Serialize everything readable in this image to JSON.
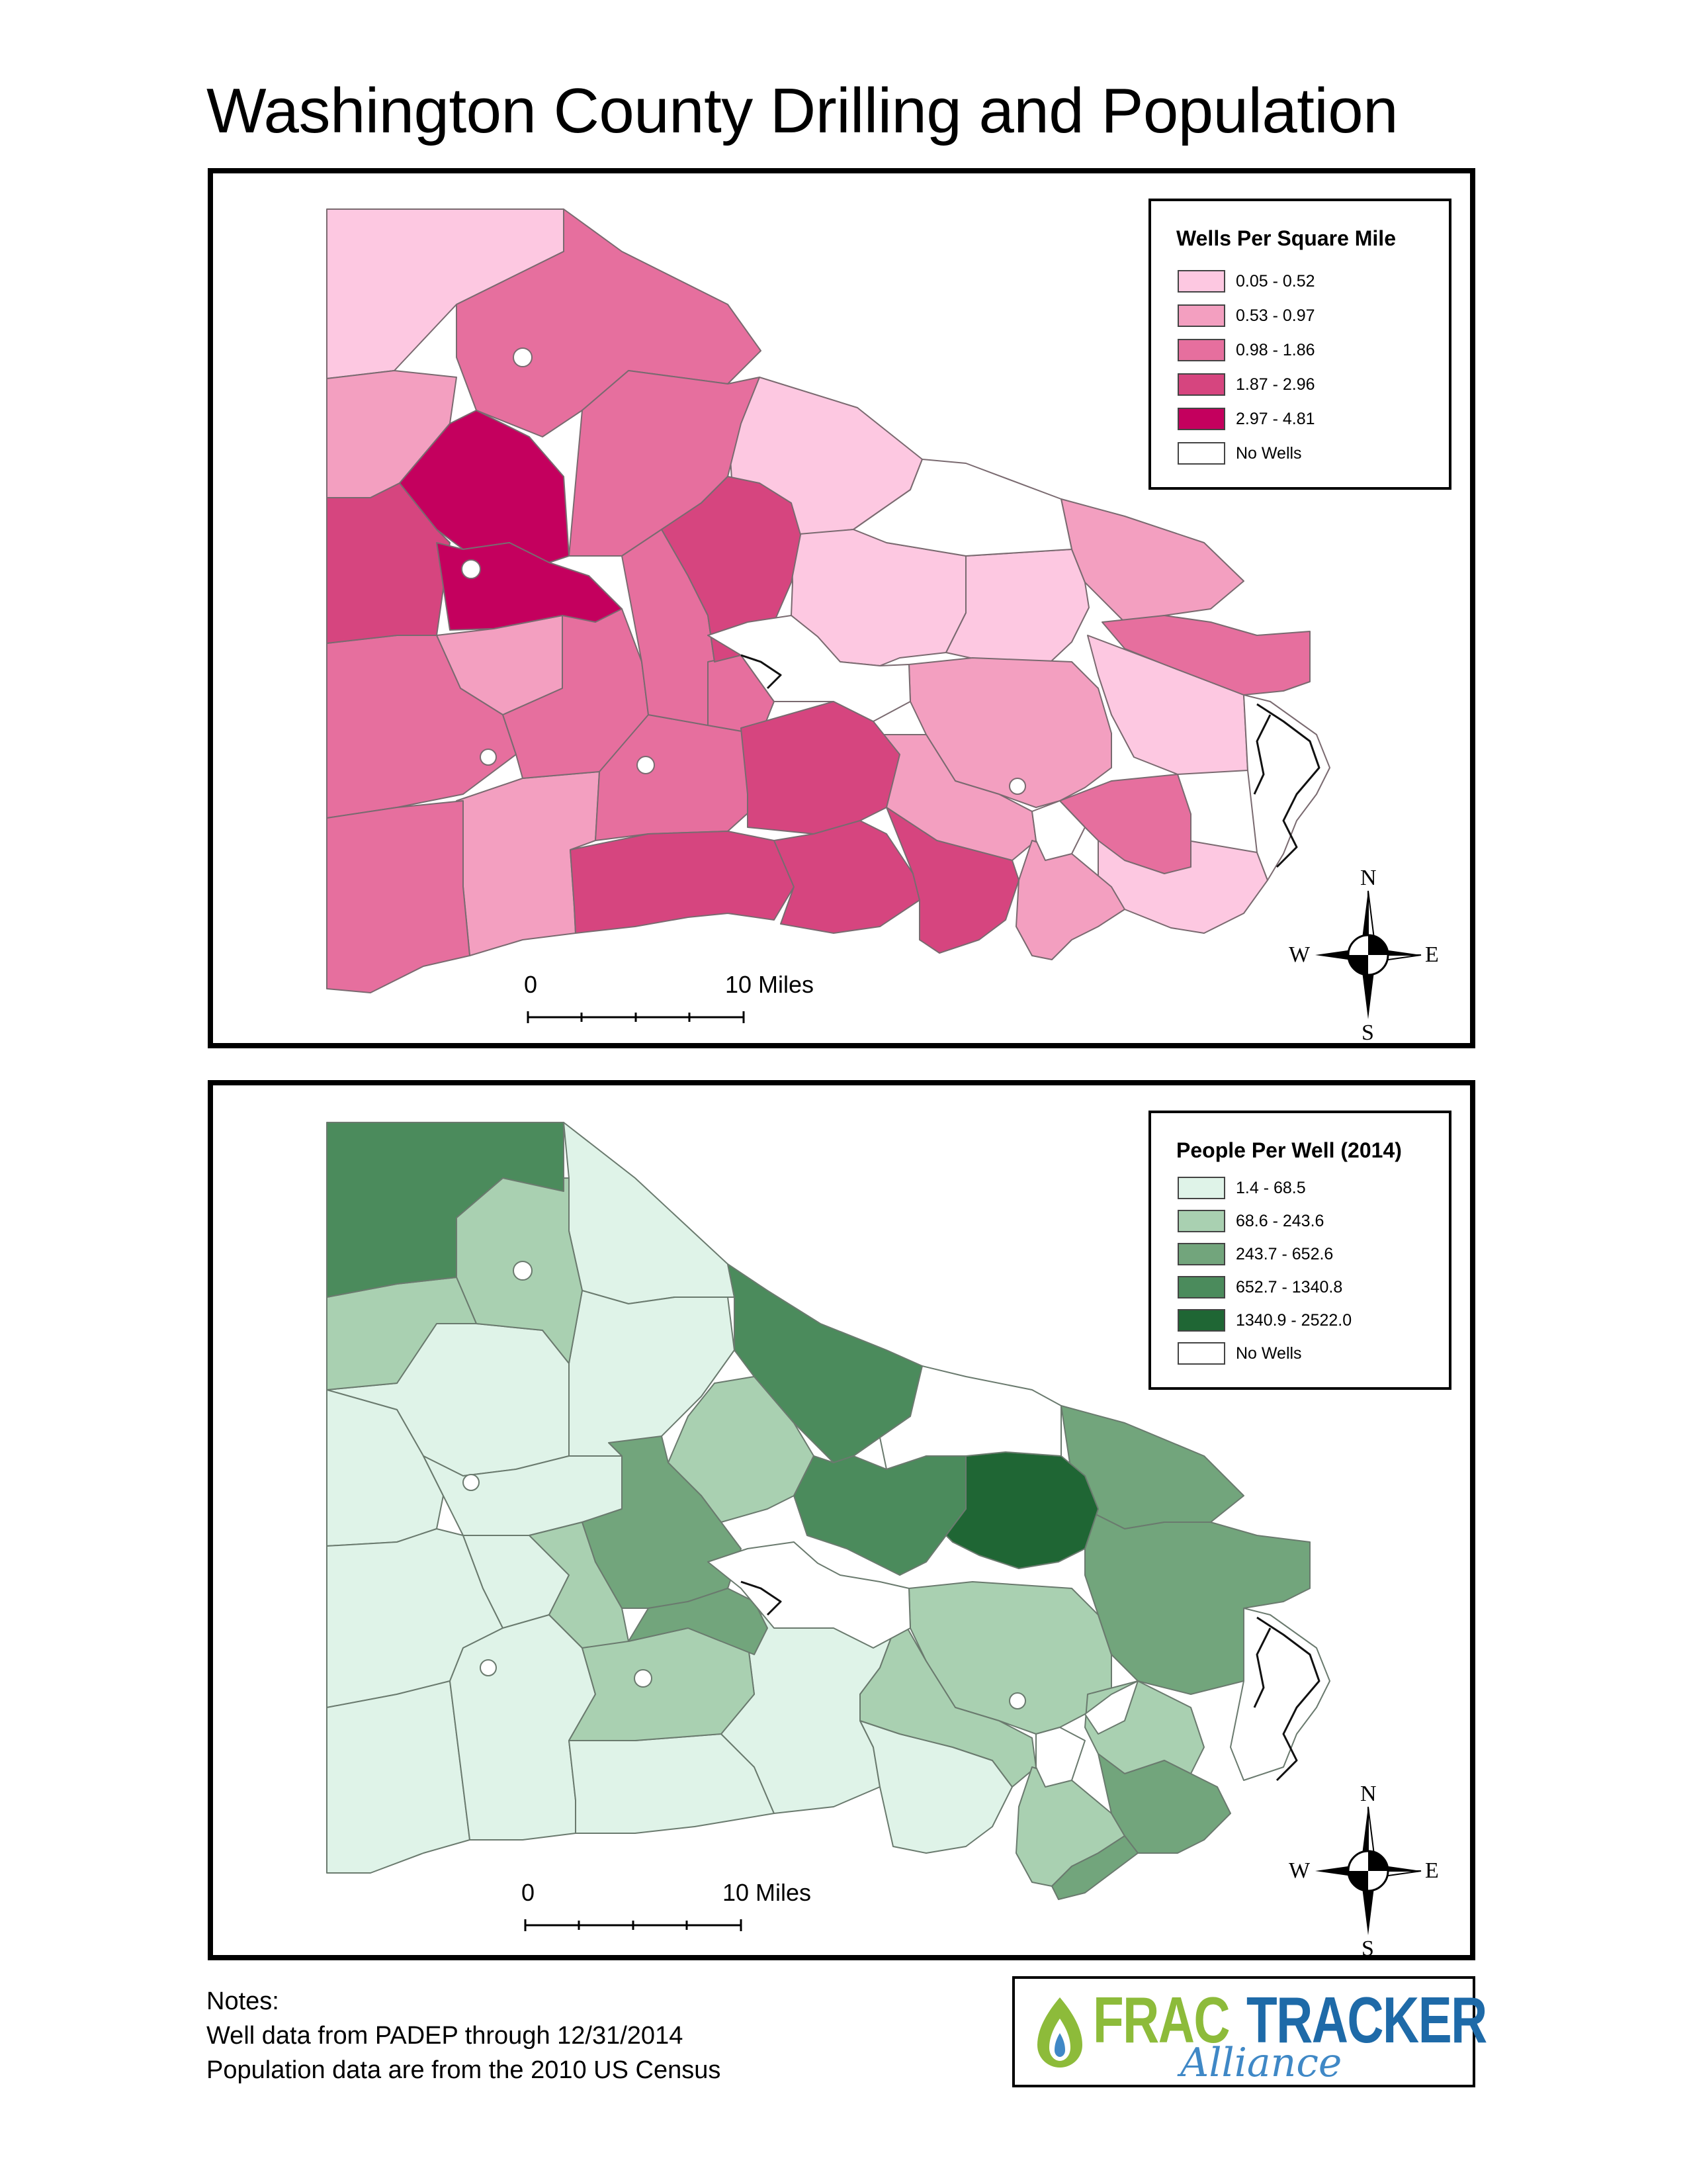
{
  "title": "Washington County Drilling and Population",
  "maps": [
    {
      "legend_title": "Wells Per Square Mile",
      "legend": [
        {
          "label": "0.05 - 0.52",
          "color": "#fdc8e1"
        },
        {
          "label": "0.53 - 0.97",
          "color": "#f39fc0"
        },
        {
          "label": "0.98 - 1.86",
          "color": "#e66f9e"
        },
        {
          "label": "1.87 - 2.96",
          "color": "#d6457f"
        },
        {
          "label": "2.97 - 4.81",
          "color": "#c4005e"
        },
        {
          "label": "No Wells",
          "color": "#ffffff"
        }
      ],
      "scale_zero": "0",
      "scale_label": "10 Miles",
      "compass": {
        "n": "N",
        "s": "S",
        "e": "E",
        "w": "W"
      }
    },
    {
      "legend_title": "People Per Well (2014)",
      "legend": [
        {
          "label": "1.4 - 68.5",
          "color": "#dff3e8"
        },
        {
          "label": "68.6 - 243.6",
          "color": "#a9d0b1"
        },
        {
          "label": "243.7 - 652.6",
          "color": "#72a57c"
        },
        {
          "label": "652.7 - 1340.8",
          "color": "#4b8b5c"
        },
        {
          "label": "1340.9 - 2522.0",
          "color": "#1f6634"
        },
        {
          "label": "No Wells",
          "color": "#ffffff"
        }
      ],
      "scale_zero": "0",
      "scale_label": "10 Miles",
      "compass": {
        "n": "N",
        "s": "S",
        "e": "E",
        "w": "W"
      }
    }
  ],
  "notes": {
    "heading": "Notes:",
    "lines": [
      "Well data from PADEP through 12/31/2014",
      "Population data are from the 2010 US Census"
    ]
  },
  "logo": {
    "word1": "FRAC",
    "word2": "TRACKER",
    "word3": "Alliance",
    "colors": {
      "frac": "#8dbb3a",
      "tracker": "#1e6aa8"
    }
  }
}
